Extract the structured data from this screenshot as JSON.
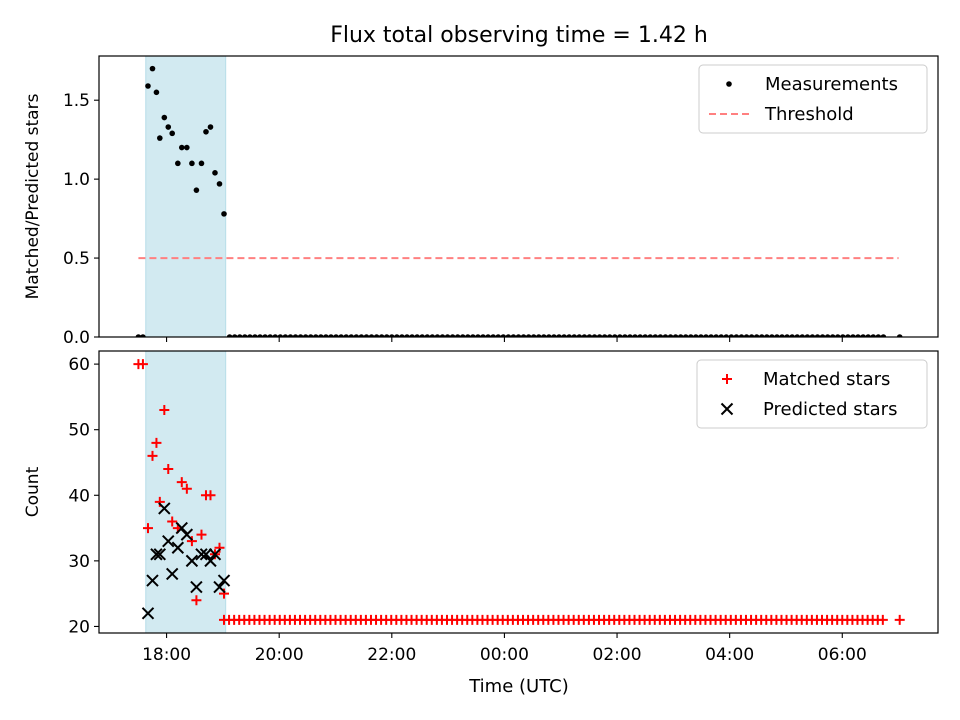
{
  "title": "Flux total observing time = 1.42 h",
  "xlabel": "Time (UTC)",
  "x_ticks": [
    {
      "hour": 18,
      "label": "18:00"
    },
    {
      "hour": 20,
      "label": "20:00"
    },
    {
      "hour": 22,
      "label": "22:00"
    },
    {
      "hour": 24,
      "label": "00:00"
    },
    {
      "hour": 26,
      "label": "02:00"
    },
    {
      "hour": 28,
      "label": "04:00"
    },
    {
      "hour": 30,
      "label": "06:00"
    }
  ],
  "xlim": [
    16.8,
    31.7
  ],
  "shaded_span": {
    "start": 17.63,
    "end": 19.05,
    "color": "#add8e6"
  },
  "chart_data": [
    {
      "type": "scatter",
      "ylabel": "Matched/Predicted stars",
      "ylim": [
        0,
        1.78
      ],
      "y_ticks": [
        {
          "value": 0.0,
          "label": "0.0"
        },
        {
          "value": 0.5,
          "label": "0.5"
        },
        {
          "value": 1.0,
          "label": "1.0"
        },
        {
          "value": 1.5,
          "label": "1.5"
        }
      ],
      "legend_position": "top-right",
      "series": [
        {
          "name": "Measurements",
          "marker": "dot",
          "color": "#000000",
          "x": [
            17.67,
            17.75,
            17.82,
            17.88,
            17.96,
            18.03,
            18.1,
            18.2,
            18.27,
            18.36,
            18.45,
            18.53,
            18.62,
            18.7,
            18.78,
            18.86,
            18.94,
            19.02
          ],
          "y": [
            1.59,
            1.7,
            1.55,
            1.26,
            1.39,
            1.33,
            1.29,
            1.1,
            1.2,
            1.2,
            1.1,
            0.93,
            1.1,
            1.3,
            1.33,
            1.04,
            0.97,
            0.78
          ],
          "zero_x_start": 19.12,
          "zero_x_end": 30.8,
          "zero_x_step": 0.09,
          "zero_x_extra": [
            17.5,
            17.58,
            31.02
          ]
        },
        {
          "name": "Threshold",
          "style": "dashed",
          "color": "#ff8080",
          "x": [
            17.5,
            31.0
          ],
          "y": [
            0.5,
            0.5
          ]
        }
      ]
    },
    {
      "type": "scatter",
      "ylabel": "Count",
      "ylim": [
        19,
        62
      ],
      "y_ticks": [
        {
          "value": 20,
          "label": "20"
        },
        {
          "value": 30,
          "label": "30"
        },
        {
          "value": 40,
          "label": "40"
        },
        {
          "value": 50,
          "label": "50"
        },
        {
          "value": 60,
          "label": "60"
        }
      ],
      "legend_position": "top-right",
      "series": [
        {
          "name": "Matched stars",
          "marker": "plus",
          "color": "#ff0000",
          "x": [
            17.5,
            17.58,
            17.67,
            17.75,
            17.82,
            17.88,
            17.96,
            18.03,
            18.1,
            18.2,
            18.27,
            18.36,
            18.45,
            18.53,
            18.62,
            18.7,
            18.78,
            18.86,
            18.94,
            19.02
          ],
          "y": [
            60,
            60,
            35,
            46,
            48,
            39,
            53,
            44,
            36,
            35,
            42,
            41,
            33,
            24,
            34,
            40,
            40,
            31,
            32,
            25
          ],
          "baseline_value": 21,
          "baseline_x_start": 19.02,
          "baseline_x_end": 30.8,
          "baseline_x_step": 0.09,
          "baseline_x_extra": [
            31.02
          ]
        },
        {
          "name": "Predicted stars",
          "marker": "x",
          "color": "#000000",
          "x": [
            17.67,
            17.75,
            17.82,
            17.88,
            17.96,
            18.03,
            18.1,
            18.2,
            18.27,
            18.36,
            18.45,
            18.53,
            18.62,
            18.7,
            18.78,
            18.86,
            18.94,
            19.02
          ],
          "y": [
            22,
            27,
            31,
            31,
            38,
            33,
            28,
            32,
            35,
            34,
            30,
            26,
            31,
            31,
            30,
            31,
            26,
            27
          ]
        }
      ]
    }
  ]
}
